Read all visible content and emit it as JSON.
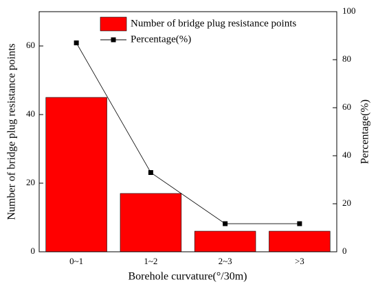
{
  "chart_data": {
    "type": "bar",
    "x_label": "Borehole curvature(°/30m)",
    "y_label": "Number of bridge plug resistance points",
    "y2_label": "Percentage(%)",
    "categories": [
      "0~1",
      "1~2",
      "2~3",
      ">3"
    ],
    "series": [
      {
        "name": "Number of bridge plug resistance points",
        "type": "bar",
        "color": "#ff0000",
        "values": [
          45,
          17,
          6,
          6
        ]
      },
      {
        "name": "Percentage(%)",
        "type": "line",
        "axis": "y2",
        "color": "#000000",
        "values": [
          87,
          33,
          11.7,
          11.7
        ]
      }
    ],
    "ylim": [
      0,
      70
    ],
    "yticks": [
      0,
      20,
      40,
      60
    ],
    "y2lim": [
      0,
      100
    ],
    "y2ticks": [
      0,
      20,
      40,
      60,
      80,
      100
    ],
    "legend": "top-right",
    "grid": false
  }
}
